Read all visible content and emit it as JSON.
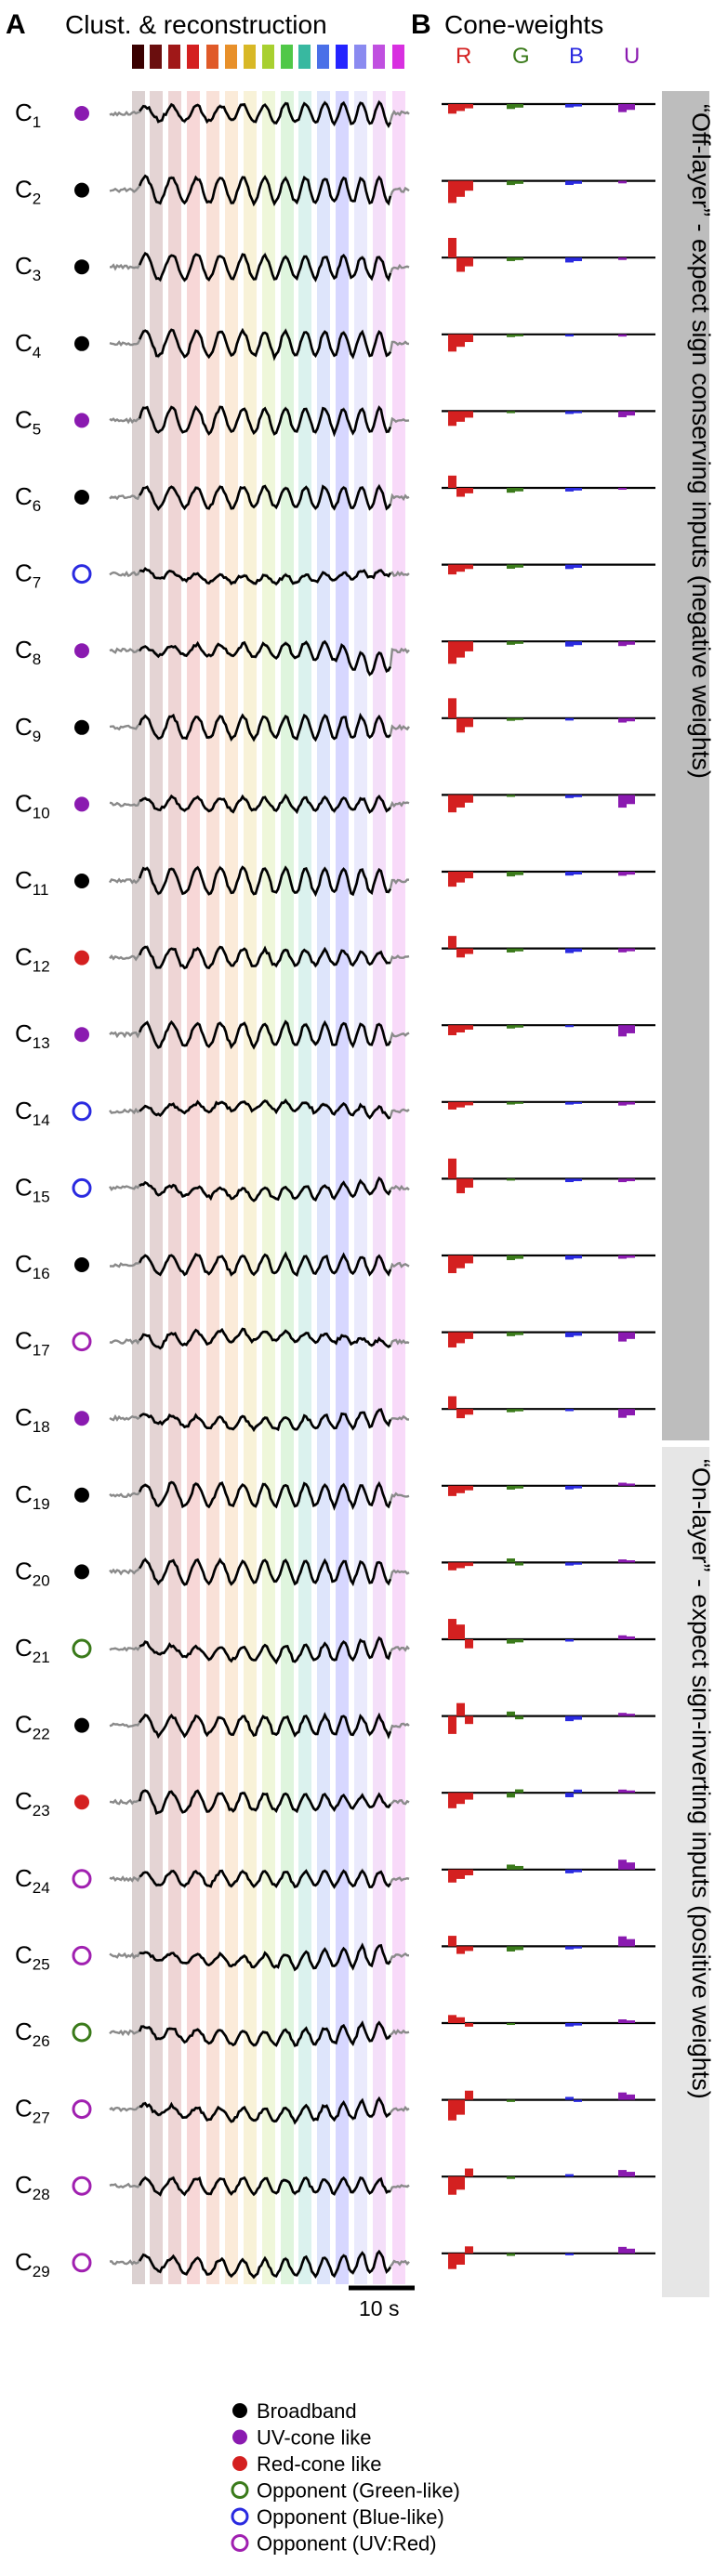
{
  "panels": {
    "a": {
      "letter": "A",
      "title": "Clust. & reconstruction"
    },
    "b": {
      "letter": "B",
      "title": "Cone-weights"
    }
  },
  "cones": [
    {
      "letter": "R",
      "color": "#d42020"
    },
    {
      "letter": "G",
      "color": "#3a7a1a"
    },
    {
      "letter": "B",
      "color": "#2a2ae0"
    },
    {
      "letter": "U",
      "color": "#8a1ab0"
    }
  ],
  "stimulus_colors": [
    "#3a0000",
    "#6a0e0e",
    "#a01818",
    "#d42020",
    "#e05a28",
    "#e8902a",
    "#d8b826",
    "#a8d030",
    "#50c848",
    "#38b8a0",
    "#4a70e8",
    "#2424ff",
    "#8a8af0",
    "#c050e0",
    "#d830e0"
  ],
  "bands": [
    {
      "text": "“Off-layer” - expect sign conserving inputs (negative weights)"
    },
    {
      "text": "“On-layer” - expect sign-inverting inputs (positive weights)"
    }
  ],
  "clusters": [
    {
      "label": "C",
      "index": "1",
      "marker": "uv"
    },
    {
      "label": "C",
      "index": "2",
      "marker": "broadband"
    },
    {
      "label": "C",
      "index": "3",
      "marker": "broadband"
    },
    {
      "label": "C",
      "index": "4",
      "marker": "broadband"
    },
    {
      "label": "C",
      "index": "5",
      "marker": "uv"
    },
    {
      "label": "C",
      "index": "6",
      "marker": "broadband"
    },
    {
      "label": "C",
      "index": "7",
      "marker": "opp_blue"
    },
    {
      "label": "C",
      "index": "8",
      "marker": "uv"
    },
    {
      "label": "C",
      "index": "9",
      "marker": "broadband"
    },
    {
      "label": "C",
      "index": "10",
      "marker": "uv"
    },
    {
      "label": "C",
      "index": "11",
      "marker": "broadband"
    },
    {
      "label": "C",
      "index": "12",
      "marker": "red"
    },
    {
      "label": "C",
      "index": "13",
      "marker": "uv"
    },
    {
      "label": "C",
      "index": "14",
      "marker": "opp_blue"
    },
    {
      "label": "C",
      "index": "15",
      "marker": "opp_blue"
    },
    {
      "label": "C",
      "index": "16",
      "marker": "broadband"
    },
    {
      "label": "C",
      "index": "17",
      "marker": "opp_uv"
    },
    {
      "label": "C",
      "index": "18",
      "marker": "uv"
    },
    {
      "label": "C",
      "index": "19",
      "marker": "broadband"
    },
    {
      "label": "C",
      "index": "20",
      "marker": "broadband"
    },
    {
      "label": "C",
      "index": "21",
      "marker": "opp_green"
    },
    {
      "label": "C",
      "index": "22",
      "marker": "broadband"
    },
    {
      "label": "C",
      "index": "23",
      "marker": "red"
    },
    {
      "label": "C",
      "index": "24",
      "marker": "opp_uv"
    },
    {
      "label": "C",
      "index": "25",
      "marker": "opp_uv"
    },
    {
      "label": "C",
      "index": "26",
      "marker": "opp_green"
    },
    {
      "label": "C",
      "index": "27",
      "marker": "opp_uv"
    },
    {
      "label": "C",
      "index": "28",
      "marker": "opp_uv"
    },
    {
      "label": "C",
      "index": "29",
      "marker": "opp_uv"
    }
  ],
  "scale_bar": {
    "label": "10 s"
  },
  "legend": [
    {
      "key": "broadband",
      "label": "Broadband",
      "color": "#000000",
      "filled": true
    },
    {
      "key": "uv",
      "label": "UV-cone like",
      "color": "#8a1ab0",
      "filled": true
    },
    {
      "key": "red",
      "label": "Red-cone like",
      "color": "#d42020",
      "filled": true
    },
    {
      "key": "opp_green",
      "label": "Opponent (Green-like)",
      "color": "#3a7a1a",
      "filled": false
    },
    {
      "key": "opp_blue",
      "label": "Opponent (Blue-like)",
      "color": "#2a2ae0",
      "filled": false
    },
    {
      "key": "opp_uv",
      "label": "Opponent (UV:Red)",
      "color": "#a020b0",
      "filled": false
    }
  ]
}
